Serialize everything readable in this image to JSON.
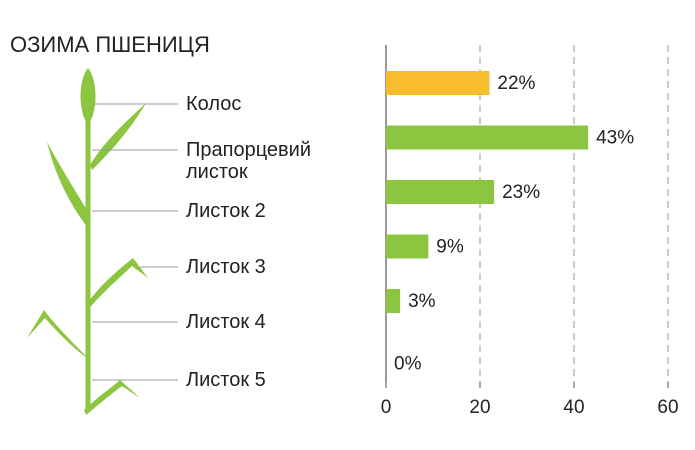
{
  "chart_data": {
    "type": "bar",
    "orientation": "horizontal",
    "title": "ОЗИМА ПШЕНИЦЯ",
    "categories": [
      "Колос",
      "Прапорцевий листок",
      "Листок 2",
      "Листок 3",
      "Листок 4",
      "Листок 5"
    ],
    "values": [
      22,
      43,
      23,
      9,
      3,
      0
    ],
    "value_labels": [
      "22%",
      "43%",
      "23%",
      "9%",
      "3%",
      "0%"
    ],
    "colors": [
      "#f7bd2e",
      "#8cc640",
      "#8cc640",
      "#8cc640",
      "#8cc640",
      "#8cc640"
    ],
    "xlim": [
      0,
      60
    ],
    "xticks": [
      0,
      20,
      40,
      60
    ],
    "grid": true
  }
}
